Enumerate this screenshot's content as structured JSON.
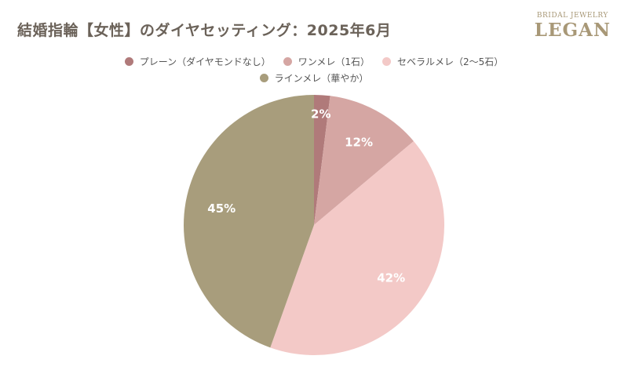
{
  "title": "結婚指輪【女性】のダイヤセッティング：2025年6月",
  "logo": {
    "top": "BRIDAL JEWELRY",
    "main": "LEGAN"
  },
  "chart_data": {
    "type": "pie",
    "title": "結婚指輪【女性】のダイヤセッティング：2025年6月",
    "legend_position": "top",
    "slices": [
      {
        "label": "プレーン（ダイヤモンドなし）",
        "value": 2,
        "display": "2%",
        "color": "#b07a7a"
      },
      {
        "label": "ワンメレ（1石）",
        "value": 12,
        "display": "12%",
        "color": "#d5a6a3"
      },
      {
        "label": "セベラルメレ（2〜5石）",
        "value": 42,
        "display": "42%",
        "color": "#f3c9c7"
      },
      {
        "label": "ラインメレ（華やか）",
        "value": 45,
        "display": "45%",
        "color": "#a89d7c"
      }
    ]
  }
}
